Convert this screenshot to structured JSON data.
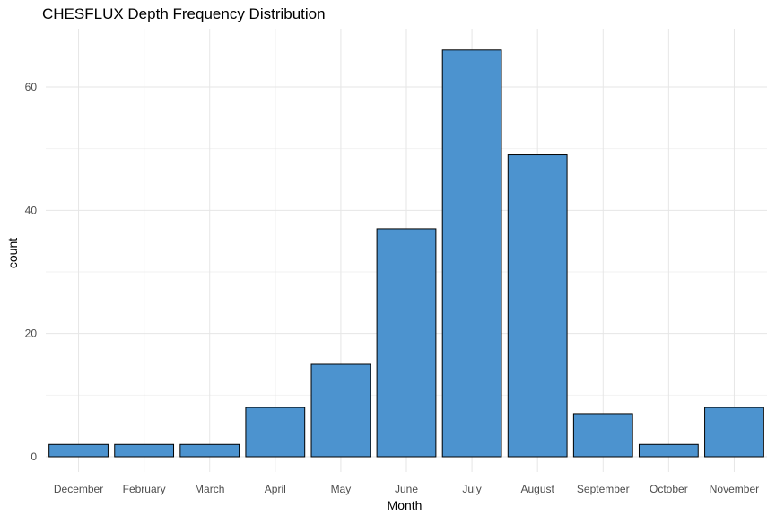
{
  "chart_data": {
    "type": "bar",
    "title": "CHESFLUX Depth Frequency Distribution",
    "xlabel": "Month",
    "ylabel": "count",
    "categories": [
      "December",
      "February",
      "March",
      "April",
      "May",
      "June",
      "July",
      "August",
      "September",
      "October",
      "November"
    ],
    "values": [
      2,
      2,
      2,
      8,
      15,
      37,
      66,
      49,
      7,
      2,
      8
    ],
    "ylim": [
      0,
      69.3
    ],
    "yticks": [
      0,
      20,
      40,
      60
    ],
    "grid": true,
    "legend": "none",
    "colors": {
      "bar_fill": "#4c93cf",
      "bar_stroke": "#000000",
      "grid_major": "#e6e6e6",
      "grid_minor": "#f2f2f2",
      "background": "#ffffff"
    }
  }
}
